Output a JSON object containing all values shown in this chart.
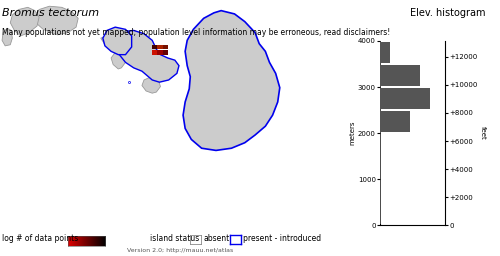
{
  "title": "Bromus tectorum",
  "subtitle": "Many populations not yet mapped; population level information may be erroneous, read disclaimers!",
  "hist_title": "Elev. histogram",
  "ylabel_left": "meters",
  "ylabel_right": "feet",
  "version_text": "Version 2.0; http://mauu.net/atlas",
  "legend_log_label": "log # of data points",
  "legend_absent_label": "absent",
  "legend_present_label": "present - introduced",
  "island_status_label": "island status",
  "hist_bins_meters": [
    0,
    500,
    1000,
    1500,
    2000,
    2500,
    3000,
    3500,
    4000
  ],
  "hist_values": [
    0,
    0,
    0,
    0,
    3,
    5,
    4,
    1
  ],
  "hist_color": "#555555",
  "background_color": "#ffffff",
  "island_fill": "#cccccc",
  "island_edge": "#999999",
  "present_edge": "#0000ee",
  "title_fontsize": 8,
  "subtitle_fontsize": 5.5,
  "hist_title_fontsize": 7,
  "axis_label_fontsize": 5,
  "tick_fontsize": 5,
  "legend_fontsize": 5.5,
  "feet_tick_positions_m": [
    0,
    609.6,
    1219.2,
    1828.8,
    2438.4,
    3048.0,
    3657.6
  ],
  "feet_labels": [
    "0",
    "+2000",
    "+4000",
    "+6000",
    "+8000",
    "+10000",
    "+12000"
  ],
  "meter_ticks": [
    0,
    1000,
    2000,
    3000,
    4000
  ],
  "meter_labels": [
    "0",
    "1000",
    "2000",
    "3000",
    "4000"
  ]
}
